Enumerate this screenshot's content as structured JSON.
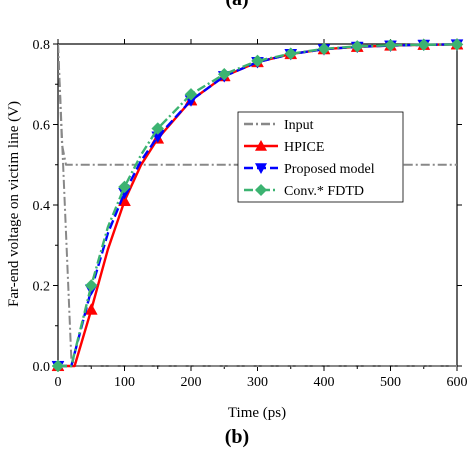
{
  "captions": {
    "top": "(a)",
    "bottom": "(b)",
    "fragment": "M"
  },
  "chart_data": {
    "type": "line",
    "xlabel": "Time (ps)",
    "ylabel": "Far-end voltage on victim line (V)",
    "xlim": [
      0,
      600
    ],
    "ylim": [
      0,
      0.8
    ],
    "xticks": [
      0,
      100,
      200,
      300,
      400,
      500,
      600
    ],
    "yticks": [
      0.0,
      0.2,
      0.4,
      0.6,
      0.8
    ],
    "xtick_labels": [
      "0",
      "100",
      "200",
      "300",
      "400",
      "500",
      "600"
    ],
    "ytick_labels": [
      "0.0",
      "0.2",
      "0.4",
      "0.6",
      "0.8"
    ],
    "legend_position": "center-right",
    "series": [
      {
        "name": "Input",
        "color": "#888888",
        "dash": "dash-dot",
        "marker": "none",
        "x": [
          0,
          20,
          25,
          600
        ],
        "y": [
          0.8,
          0.02,
          0.0,
          0.0
        ]
      },
      {
        "name": "Input",
        "color": "#888888",
        "dash": "dash-dot",
        "marker": "none",
        "x": [
          0,
          6,
          12,
          600
        ],
        "y": [
          0.8,
          0.55,
          0.5,
          0.5
        ],
        "legend": false
      },
      {
        "name": "HPICE",
        "color": "#ff0000",
        "dash": "solid",
        "marker": "triangle-up",
        "x": [
          0,
          25,
          50,
          75,
          100,
          125,
          150,
          200,
          250,
          300,
          350,
          400,
          450,
          500,
          550,
          600
        ],
        "y": [
          0.0,
          0.0,
          0.14,
          0.29,
          0.41,
          0.5,
          0.565,
          0.66,
          0.72,
          0.755,
          0.775,
          0.787,
          0.793,
          0.796,
          0.798,
          0.799
        ],
        "marker_x": [
          0,
          50,
          100,
          150,
          200,
          250,
          300,
          350,
          400,
          450,
          500,
          550,
          600
        ],
        "marker_y": [
          0.0,
          0.14,
          0.41,
          0.565,
          0.66,
          0.72,
          0.755,
          0.775,
          0.787,
          0.793,
          0.796,
          0.798,
          0.799
        ]
      },
      {
        "name": "Proposed model",
        "color": "#0000ff",
        "dash": "dash",
        "marker": "triangle-down",
        "x": [
          0,
          20,
          50,
          75,
          100,
          125,
          150,
          200,
          250,
          300,
          350,
          400,
          450,
          500,
          550,
          600
        ],
        "y": [
          0.0,
          0.0,
          0.19,
          0.33,
          0.43,
          0.51,
          0.57,
          0.66,
          0.72,
          0.755,
          0.775,
          0.787,
          0.793,
          0.796,
          0.798,
          0.799
        ],
        "marker_x": [
          0,
          50,
          100,
          150,
          200,
          250,
          300,
          350,
          400,
          450,
          500,
          550,
          600
        ],
        "marker_y": [
          0.0,
          0.19,
          0.43,
          0.57,
          0.66,
          0.72,
          0.755,
          0.775,
          0.787,
          0.793,
          0.796,
          0.798,
          0.799
        ]
      },
      {
        "name": "Conv.* FDTD",
        "color": "#3cb371",
        "dash": "dash-dot",
        "marker": "diamond",
        "x": [
          0,
          20,
          50,
          75,
          100,
          125,
          150,
          200,
          250,
          300,
          350,
          400,
          450,
          500,
          550,
          600
        ],
        "y": [
          0.0,
          0.0,
          0.2,
          0.345,
          0.445,
          0.525,
          0.59,
          0.675,
          0.725,
          0.758,
          0.776,
          0.788,
          0.794,
          0.797,
          0.798,
          0.799
        ],
        "marker_x": [
          0,
          50,
          100,
          150,
          200,
          250,
          300,
          350,
          400,
          450,
          500,
          550,
          600
        ],
        "marker_y": [
          0.0,
          0.2,
          0.445,
          0.59,
          0.675,
          0.725,
          0.758,
          0.776,
          0.788,
          0.794,
          0.797,
          0.798,
          0.799
        ]
      }
    ]
  }
}
